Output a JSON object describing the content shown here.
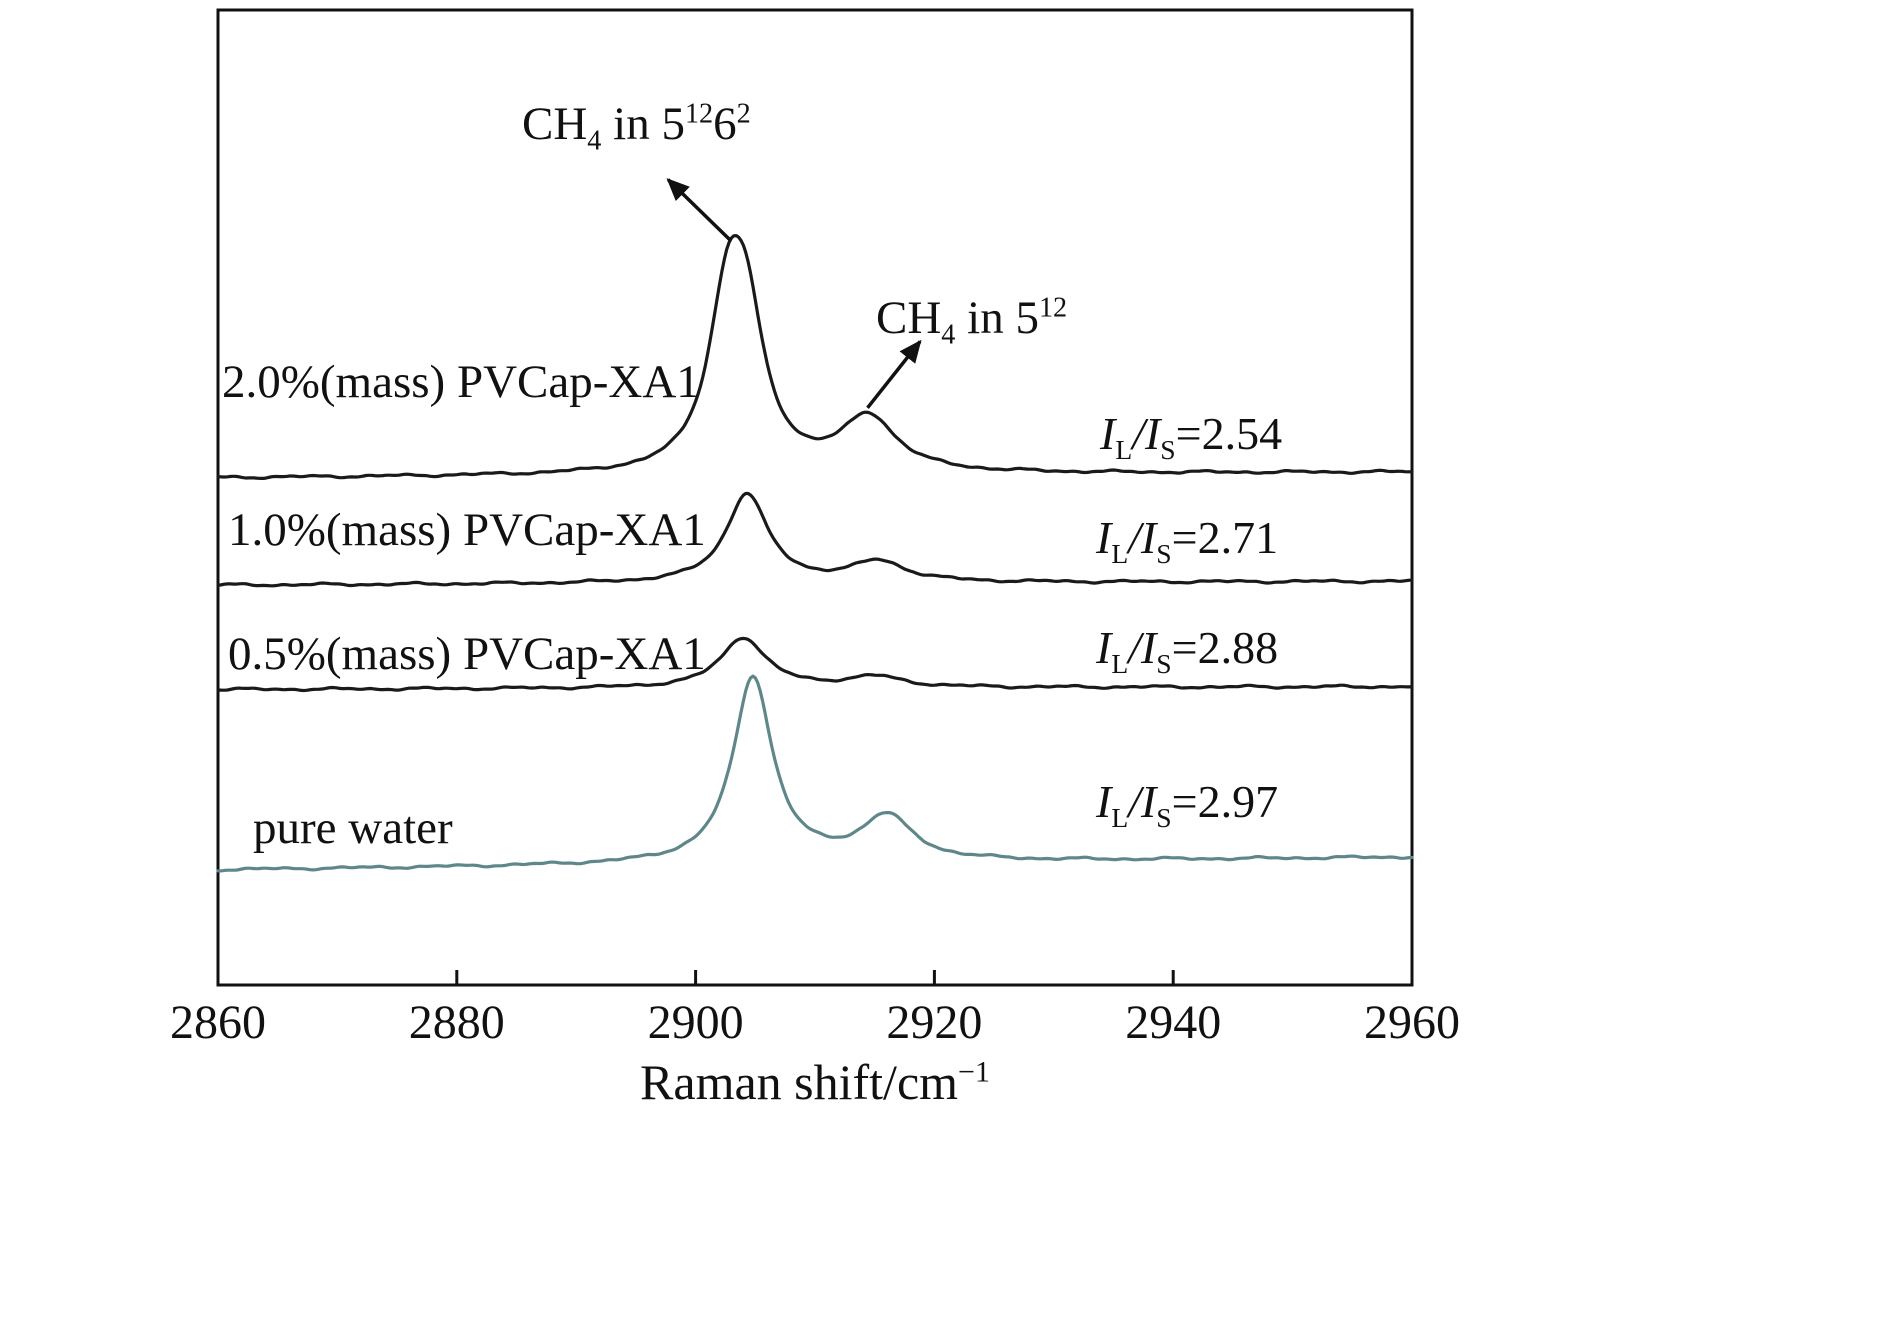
{
  "figure": {
    "background": "#ffffff",
    "axis_color": "#111111"
  },
  "chart_data": {
    "type": "line",
    "title": "",
    "xlabel": {
      "text": "Raman shift/cm",
      "sup": "−1"
    },
    "ylabel": "",
    "xlim": [
      2860,
      2960
    ],
    "xticks": [
      2860,
      2880,
      2900,
      2920,
      2940,
      2960
    ],
    "grid": false,
    "legend_position": "none",
    "series": [
      {
        "name": "2.0%(mass) PVCap-XA1",
        "color": "#1a1a1a",
        "baseline": 0.48,
        "tilt": 0.006,
        "peaks": [
          {
            "center": 2902.6,
            "height": 0.148,
            "hwhm": 1.9
          },
          {
            "center": 2904.2,
            "height": 0.138,
            "hwhm": 1.9
          },
          {
            "center": 2914.5,
            "height": 0.056,
            "hwhm": 2.8
          }
        ],
        "ratio": {
          "I": "I",
          "L": "L",
          "slash": "/",
          "S": "S",
          "eq_value": "=2.54"
        }
      },
      {
        "name": "1.0%(mass) PVCap-XA1",
        "color": "#1a1a1a",
        "baseline": 0.59,
        "tilt": 0.004,
        "peaks": [
          {
            "center": 2904.3,
            "height": 0.092,
            "hwhm": 2.1
          },
          {
            "center": 2915.3,
            "height": 0.021,
            "hwhm": 2.8
          }
        ],
        "ratio": {
          "I": "I",
          "L": "L",
          "slash": "/",
          "S": "S",
          "eq_value": "=2.71"
        }
      },
      {
        "name": "0.5%(mass) PVCap-XA1",
        "color": "#1a1a1a",
        "baseline": 0.697,
        "tilt": 0.003,
        "peaks": [
          {
            "center": 2904.0,
            "height": 0.052,
            "hwhm": 2.3
          },
          {
            "center": 2915.0,
            "height": 0.011,
            "hwhm": 2.8
          }
        ],
        "ratio": {
          "I": "I",
          "L": "L",
          "slash": "/",
          "S": "S",
          "eq_value": "=2.88"
        }
      },
      {
        "name": "pure water",
        "color": "#5f878a",
        "baseline": 0.882,
        "tilt": 0.013,
        "peaks": [
          {
            "center": 2904.8,
            "height": 0.192,
            "hwhm": 2.0
          },
          {
            "center": 2916.0,
            "height": 0.046,
            "hwhm": 2.6
          }
        ],
        "ratio": {
          "I": "I",
          "L": "L",
          "slash": "/",
          "S": "S",
          "eq_value": "=2.97"
        }
      }
    ],
    "annotations": [
      {
        "text_parts": {
          "pre": "CH",
          "sub": "4",
          "mid": " in 5",
          "sup1": "12",
          "base2": "6",
          "sup2": "2"
        },
        "arrow": {
          "from_x": 2902.9,
          "from_y": 0.236,
          "to_x": 2897.7,
          "to_y": 0.174
        }
      },
      {
        "text_parts": {
          "pre": "CH",
          "sub": "4",
          "mid": " in 5",
          "sup1": "12"
        },
        "arrow": {
          "from_x": 2914.4,
          "from_y": 0.408,
          "to_x": 2918.8,
          "to_y": 0.34
        }
      }
    ]
  }
}
